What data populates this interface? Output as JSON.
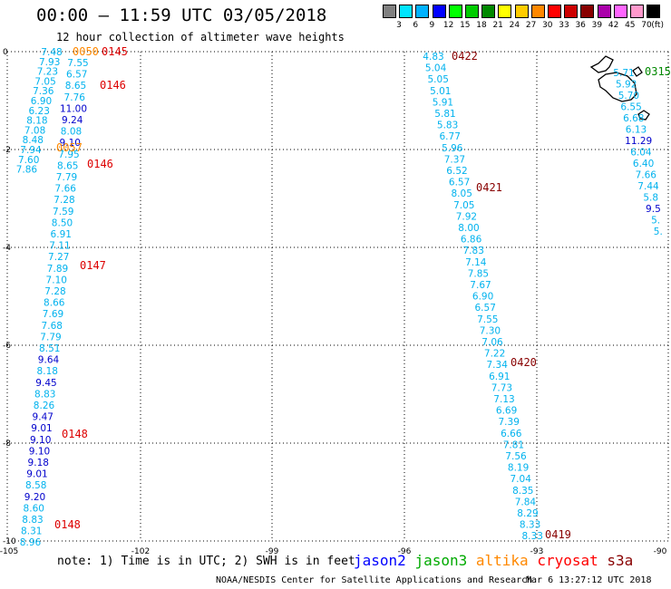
{
  "header": {
    "title": "00:00 – 11:59 UTC 03/05/2018",
    "subtitle": "12 hour collection of altimeter wave heights"
  },
  "legend": {
    "unit": "(ft)",
    "colors": [
      "#808080",
      "#00e5ff",
      "#00b2ff",
      "#0000ff",
      "#00ff00",
      "#00cc00",
      "#008800",
      "#ffff00",
      "#ffcc00",
      "#ff8800",
      "#ff0000",
      "#cc0000",
      "#880000",
      "#aa00aa",
      "#ff66ff",
      "#ff99cc",
      "#000000"
    ],
    "labels": [
      "3",
      "6",
      "9",
      "12",
      "15",
      "18",
      "21",
      "24",
      "27",
      "30",
      "33",
      "36",
      "39",
      "42",
      "45",
      "70"
    ]
  },
  "axes": {
    "lon_labels": [
      "-105",
      "-102",
      "-99",
      "-96",
      "-93",
      "-90"
    ],
    "lat_labels": [
      "0",
      "-2",
      "-4",
      "-6",
      "-8",
      "-10"
    ]
  },
  "tracks": {
    "west_top": [
      "7.48",
      "7.93",
      "7.23",
      "7.05",
      "7.36",
      "6.90",
      "6.23",
      "8.18",
      "7.08",
      "8.48",
      "7.94",
      "7.60",
      "7.86"
    ],
    "west_top_colors": [
      "c",
      "c",
      "c",
      "c",
      "c",
      "c",
      "c",
      "c",
      "c",
      "c",
      "c",
      "c",
      "c"
    ],
    "west_mid": [
      "7.55",
      "6.57",
      "8.65",
      "7.76",
      "11.00",
      "9.24",
      "8.08",
      "9.10",
      "7.95",
      "8.65",
      "7.79",
      "7.66",
      "7.28",
      "7.59",
      "8.50",
      "6.91",
      "7.11",
      "7.27",
      "7.89",
      "7.10",
      "7.28",
      "8.66",
      "7.69",
      "7.68",
      "7.79",
      "8.51",
      "9.64",
      "8.18",
      "9.45",
      "8.83",
      "8.26",
      "9.47",
      "9.01",
      "9.10",
      "9.10",
      "9.18",
      "9.01",
      "8.58",
      "9.20",
      "8.60",
      "8.83",
      "8.31",
      "8.96"
    ],
    "west_mid_colors": [
      "c",
      "c",
      "c",
      "c",
      "b",
      "b",
      "c",
      "b",
      "c",
      "c",
      "c",
      "c",
      "c",
      "c",
      "c",
      "c",
      "c",
      "c",
      "c",
      "c",
      "c",
      "c",
      "c",
      "c",
      "c",
      "c",
      "b",
      "c",
      "b",
      "c",
      "c",
      "b",
      "b",
      "b",
      "b",
      "b",
      "b",
      "c",
      "b",
      "c",
      "c",
      "c",
      "c"
    ],
    "east": [
      "4.83",
      "5.04",
      "5.05",
      "5.01",
      "5.91",
      "5.81",
      "5.83",
      "6.77",
      "5.96",
      "7.37",
      "6.52",
      "6.57",
      "8.05",
      "7.05",
      "7.92",
      "8.00",
      "6.86",
      "7.83",
      "7.14",
      "7.85",
      "7.67",
      "6.90",
      "6.57",
      "7.55",
      "7.30",
      "7.06",
      "7.22",
      "7.34",
      "6.91",
      "7.73",
      "7.13",
      "6.69",
      "7.39",
      "6.66",
      "7.81",
      "7.56",
      "8.19",
      "7.04",
      "8.35",
      "7.84",
      "8.29",
      "8.33",
      "8.33"
    ],
    "east_colors": [
      "c",
      "c",
      "c",
      "c",
      "c",
      "c",
      "c",
      "c",
      "c",
      "c",
      "c",
      "c",
      "c",
      "c",
      "c",
      "c",
      "c",
      "c",
      "c",
      "c",
      "c",
      "c",
      "c",
      "c",
      "c",
      "c",
      "c",
      "c",
      "c",
      "c",
      "c",
      "c",
      "c",
      "c",
      "c",
      "c",
      "c",
      "c",
      "c",
      "c",
      "c",
      "c",
      "c"
    ],
    "far_east": [
      "5.71",
      "5.92",
      "5.70",
      "6.55",
      "6.68",
      "6.13",
      "11.29",
      "6.04",
      "6.40",
      "7.66",
      "7.44",
      "5.8",
      "9.5",
      "5.",
      "5."
    ],
    "far_east_colors": [
      "c",
      "c",
      "c",
      "c",
      "c",
      "c",
      "b",
      "c",
      "c",
      "c",
      "c",
      "c",
      "b",
      "c",
      "c"
    ]
  },
  "time_labels": [
    {
      "text": "0145",
      "color": "#dd0000"
    },
    {
      "text": "0050",
      "color": "#ff8800"
    },
    {
      "text": "0146",
      "color": "#dd0000"
    },
    {
      "text": "0057",
      "color": "#ff8800"
    },
    {
      "text": "0146",
      "color": "#dd0000"
    },
    {
      "text": "0147",
      "color": "#dd0000"
    },
    {
      "text": "0148",
      "color": "#dd0000"
    },
    {
      "text": "0148",
      "color": "#dd0000"
    },
    {
      "text": "0422",
      "color": "#880000"
    },
    {
      "text": "0421",
      "color": "#880000"
    },
    {
      "text": "0420",
      "color": "#880000"
    },
    {
      "text": "0419",
      "color": "#880000"
    },
    {
      "text": "0315",
      "color": "#008800"
    }
  ],
  "footer": {
    "note": "note: 1) Time is in UTC; 2) SWH is in feet",
    "satellites": [
      {
        "name": "jason2",
        "color": "#0000ff"
      },
      {
        "name": "jason3",
        "color": "#00aa00"
      },
      {
        "name": "altika",
        "color": "#ff8800"
      },
      {
        "name": "cryosat",
        "color": "#ff0000"
      },
      {
        "name": "s3a",
        "color": "#880000"
      }
    ],
    "credit": "NOAA/NESDIS Center for Satellite Applications and Research",
    "timestamp": "Mar  6 13:27:12 UTC 2018"
  }
}
